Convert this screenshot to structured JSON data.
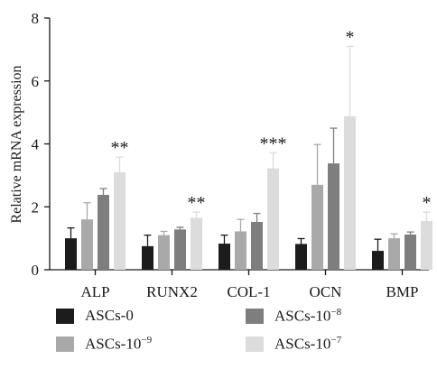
{
  "chart_data": {
    "type": "bar",
    "ylabel": "Relative mRNA expression",
    "xlabel": "",
    "ylim": [
      0,
      8
    ],
    "yticks": [
      0,
      2,
      4,
      6,
      8
    ],
    "grid": false,
    "legend_position": "bottom",
    "categories": [
      "ALP",
      "RUNX2",
      "COL-1",
      "OCN",
      "BMP"
    ],
    "series": [
      {
        "name": "ASCs-0",
        "name_base": "ASCs-10",
        "name_exp": "",
        "color": "#1c1c1c",
        "values": [
          1.0,
          0.75,
          0.83,
          0.82,
          0.6
        ],
        "errors": [
          0.33,
          0.35,
          0.27,
          0.17,
          0.37
        ]
      },
      {
        "name": "ASCs-10−9",
        "name_base": "ASCs-10",
        "name_exp": "−9",
        "color": "#a9a9a9",
        "values": [
          1.6,
          1.1,
          1.22,
          2.7,
          1.0
        ],
        "errors": [
          0.53,
          0.12,
          0.38,
          1.28,
          0.14
        ]
      },
      {
        "name": "ASCs-10−8",
        "name_base": "ASCs-10",
        "name_exp": "−8",
        "color": "#7e7e7e",
        "values": [
          2.38,
          1.28,
          1.52,
          3.38,
          1.12
        ],
        "errors": [
          0.2,
          0.07,
          0.27,
          1.12,
          0.08
        ]
      },
      {
        "name": "ASCs-10−7",
        "name_base": "ASCs-10",
        "name_exp": "−7",
        "color": "#dcdcdc",
        "values": [
          3.1,
          1.65,
          3.22,
          4.88,
          1.55
        ],
        "errors": [
          0.48,
          0.18,
          0.5,
          2.22,
          0.28
        ]
      }
    ],
    "annotations": [
      {
        "category": "ALP",
        "series": 3,
        "text": "**"
      },
      {
        "category": "RUNX2",
        "series": 3,
        "text": "**"
      },
      {
        "category": "COL-1",
        "series": 3,
        "text": "***"
      },
      {
        "category": "OCN",
        "series": 3,
        "text": "*"
      },
      {
        "category": "BMP",
        "series": 3,
        "text": "*"
      }
    ]
  }
}
